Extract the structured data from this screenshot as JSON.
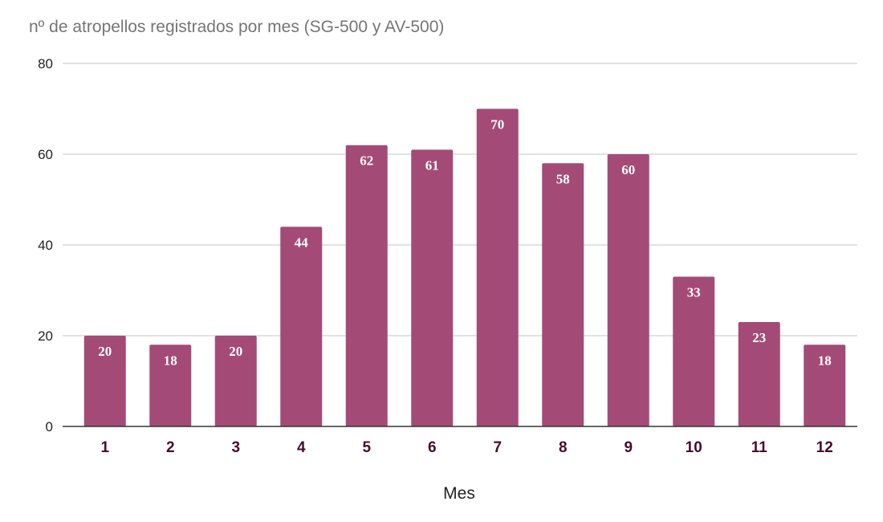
{
  "chart_data": {
    "type": "bar",
    "title": "nº de atropellos registrados por mes (SG-500 y AV-500)",
    "xlabel": "Mes",
    "ylabel": "",
    "categories": [
      "1",
      "2",
      "3",
      "4",
      "5",
      "6",
      "7",
      "8",
      "9",
      "10",
      "11",
      "12"
    ],
    "values": [
      20,
      18,
      20,
      44,
      62,
      61,
      70,
      58,
      60,
      33,
      23,
      18
    ],
    "ylim": [
      0,
      80
    ],
    "yticks": [
      "0",
      "20",
      "40",
      "60",
      "80"
    ],
    "grid": true,
    "legend": "none",
    "bar_color": "#a34b76",
    "data_labels": true
  }
}
